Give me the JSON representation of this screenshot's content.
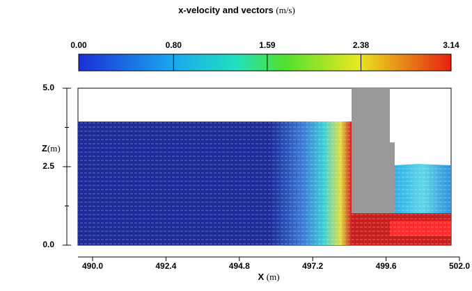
{
  "chart_data": {
    "type": "field",
    "title": "x-velocity and vectors",
    "title_unit": "(m/s)",
    "clim": [
      0,
      3.14
    ],
    "cticks": [
      {
        "value": 0,
        "label": "0.00"
      },
      {
        "value": 0.8,
        "label": "0.80"
      },
      1.59,
      2.38,
      3.14
    ],
    "xlabel": "X",
    "xunit": "(m)",
    "ylabel": "Z",
    "yunit": "(m)",
    "xlim": [
      490,
      502
    ],
    "xticks": [
      {
        "value": 490,
        "label": "490.0"
      },
      492.4,
      494.8,
      497.2,
      499.6,
      {
        "value": 502,
        "label": "502.0"
      }
    ],
    "ylim": [
      0,
      5
    ],
    "yticks": [
      {
        "value": 0,
        "label": "0.0"
      },
      2.5,
      {
        "value": 5,
        "label": "5.0"
      }
    ],
    "yminorticks": [
      1.25,
      3.75
    ]
  }
}
